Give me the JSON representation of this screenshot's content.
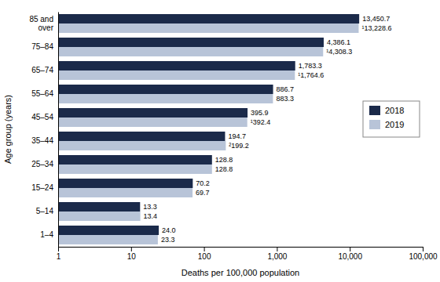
{
  "chart_data": {
    "type": "bar",
    "orientation": "horizontal",
    "log": "x",
    "xlabel": "Deaths per 100,000 population",
    "ylabel": "Age group (years)",
    "categories": [
      "1–4",
      "5–14",
      "15–24",
      "25–34",
      "35–44",
      "45–54",
      "55–64",
      "65–74",
      "75–84",
      "85 and\nover"
    ],
    "series": [
      {
        "name": "2018",
        "color": "#1b2a4a",
        "values": [
          24.0,
          13.3,
          70.2,
          128.8,
          194.7,
          395.9,
          886.7,
          1783.3,
          4386.1,
          13450.7
        ],
        "value_labels": [
          "24.0",
          "13.3",
          "70.2",
          "128.8",
          "194.7",
          "395.9",
          "886.7",
          "1,783.3",
          "4,386.1",
          "13,450.7"
        ]
      },
      {
        "name": "2019",
        "color": "#b8c4d8",
        "values": [
          23.3,
          13.4,
          69.7,
          128.8,
          199.2,
          392.4,
          883.3,
          1764.6,
          4308.3,
          13228.6
        ],
        "value_labels": [
          "23.3",
          "13.4",
          "69.7",
          "128.8",
          "²199.2",
          "¹392.4",
          "883.3",
          "¹1,764.6",
          "¹4,308.3",
          "¹13,228.6"
        ]
      }
    ],
    "xlim": [
      1,
      100000
    ],
    "xticks": [
      1,
      10,
      100,
      {
        "value": 1000,
        "label": "1,000"
      },
      {
        "value": 10000,
        "label": "10,000"
      },
      {
        "value": 100000,
        "label": "100,000"
      }
    ],
    "grid": false,
    "legend": "right",
    "data_labels": true
  }
}
